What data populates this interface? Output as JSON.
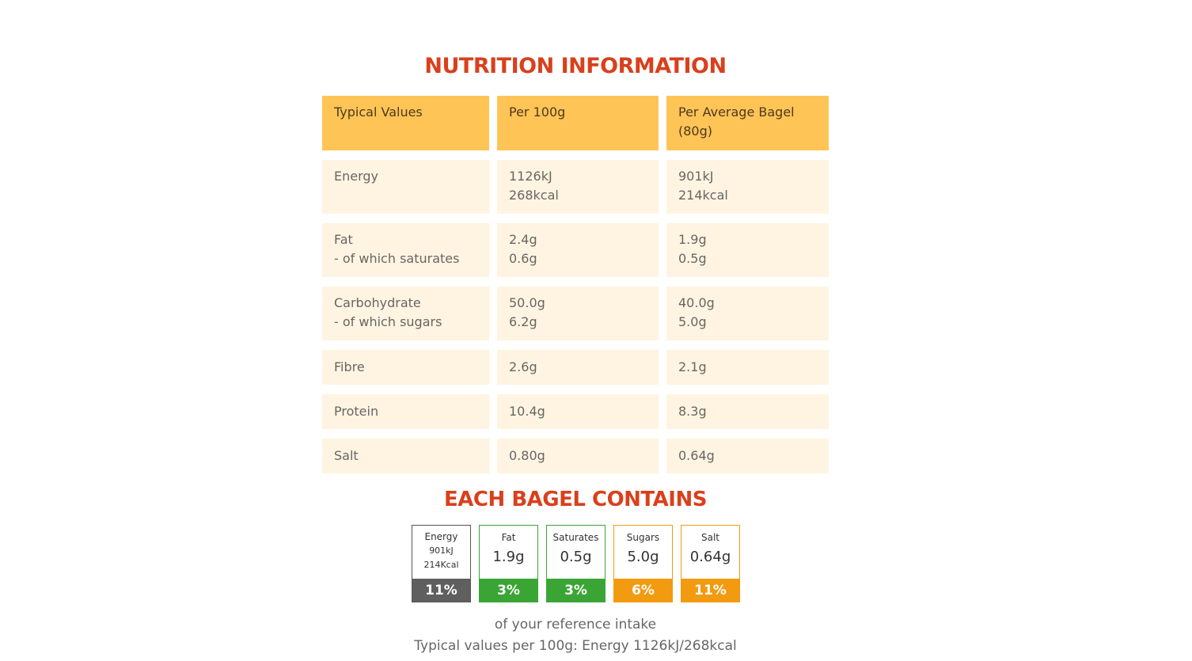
{
  "nutrition": {
    "title": "NUTRITION INFORMATION",
    "headers": [
      "Typical Values",
      "Per 100g",
      "Per Average Bagel\n(80g)"
    ],
    "rows": [
      [
        "Energy",
        "1126kJ\n268kcal",
        "901kJ\n214kcal"
      ],
      [
        "Fat\n- of which saturates",
        "2.4g\n0.6g",
        "1.9g\n0.5g"
      ],
      [
        "Carbohydrate\n- of which sugars",
        "50.0g\n6.2g",
        "40.0g\n5.0g"
      ],
      [
        "Fibre",
        "2.6g",
        "2.1g"
      ],
      [
        "Protein",
        "10.4g",
        "8.3g"
      ],
      [
        "Salt",
        "0.80g",
        "0.64g"
      ]
    ]
  },
  "contains": {
    "title": "EACH BAGEL CONTAINS",
    "energy": {
      "name": "Energy",
      "kj": "901kJ",
      "kcal": "214Kcal",
      "percent": "11%",
      "color": "#5f5f5f"
    },
    "items": [
      {
        "name": "Fat",
        "amount": "1.9g",
        "percent": "3%",
        "color": "#3aa535"
      },
      {
        "name": "Saturates",
        "amount": "0.5g",
        "percent": "3%",
        "color": "#3aa535"
      },
      {
        "name": "Sugars",
        "amount": "5.0g",
        "percent": "6%",
        "color": "#f29b11"
      },
      {
        "name": "Salt",
        "amount": "0.64g",
        "percent": "11%",
        "color": "#f29b11"
      }
    ],
    "reference_note": "of your reference intake",
    "typical_note": "Typical values per 100g: Energy 1126kJ/268kcal"
  }
}
